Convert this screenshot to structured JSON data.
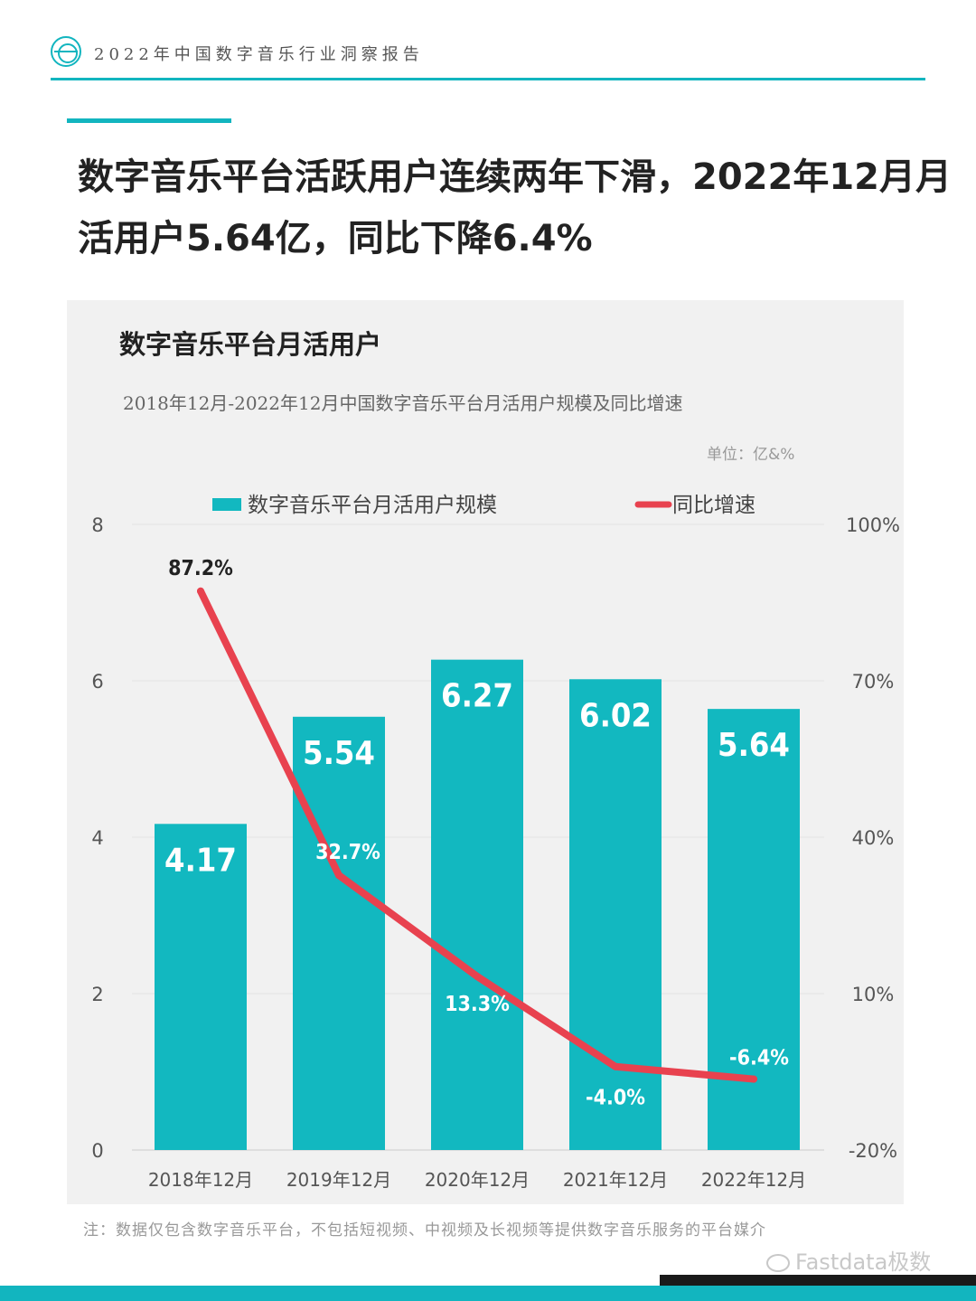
{
  "header": {
    "title": "2022年中国数字音乐行业洞察报告"
  },
  "headline": "数字音乐平台活跃用户连续两年下滑，2022年12月月活用户5.64亿，同比下降6.4%",
  "chart_data": {
    "type": "bar",
    "title": "数字音乐平台月活用户",
    "subtitle": "2018年12月-2022年12月中国数字音乐平台月活用户规模及同比增速",
    "unit": "单位：亿&%",
    "categories": [
      "2018年12月",
      "2019年12月",
      "2020年12月",
      "2021年12月",
      "2022年12月"
    ],
    "series": [
      {
        "name": "数字音乐平台月活用户规模",
        "type": "bar",
        "axis": "left",
        "values": [
          4.17,
          5.54,
          6.27,
          6.02,
          5.64
        ],
        "labels": [
          "4.17",
          "5.54",
          "6.27",
          "6.02",
          "5.64"
        ],
        "color": "#12b8c0"
      },
      {
        "name": "同比增速",
        "type": "line",
        "axis": "right",
        "values": [
          87.2,
          32.7,
          13.3,
          -4.0,
          -6.4
        ],
        "labels": [
          "87.2%",
          "32.7%",
          "13.3%",
          "-4.0%",
          "-6.4%"
        ],
        "color": "#e8424f"
      }
    ],
    "y_left": {
      "min": 0,
      "max": 8,
      "ticks": [
        0,
        2,
        4,
        6,
        8
      ],
      "tick_labels": [
        "0",
        "2",
        "4",
        "6",
        "8"
      ]
    },
    "y_right": {
      "min": -20,
      "max": 100,
      "ticks": [
        -20,
        10,
        40,
        70,
        100
      ],
      "tick_labels": [
        "-20%",
        "10%",
        "40%",
        "70%",
        "100%"
      ]
    },
    "legend_position": "top",
    "grid": true
  },
  "footnote": "注：数据仅包含数字音乐平台，不包括短视频、中视频及长视频等提供数字音乐服务的平台媒介",
  "watermark": "Fastdata极数"
}
